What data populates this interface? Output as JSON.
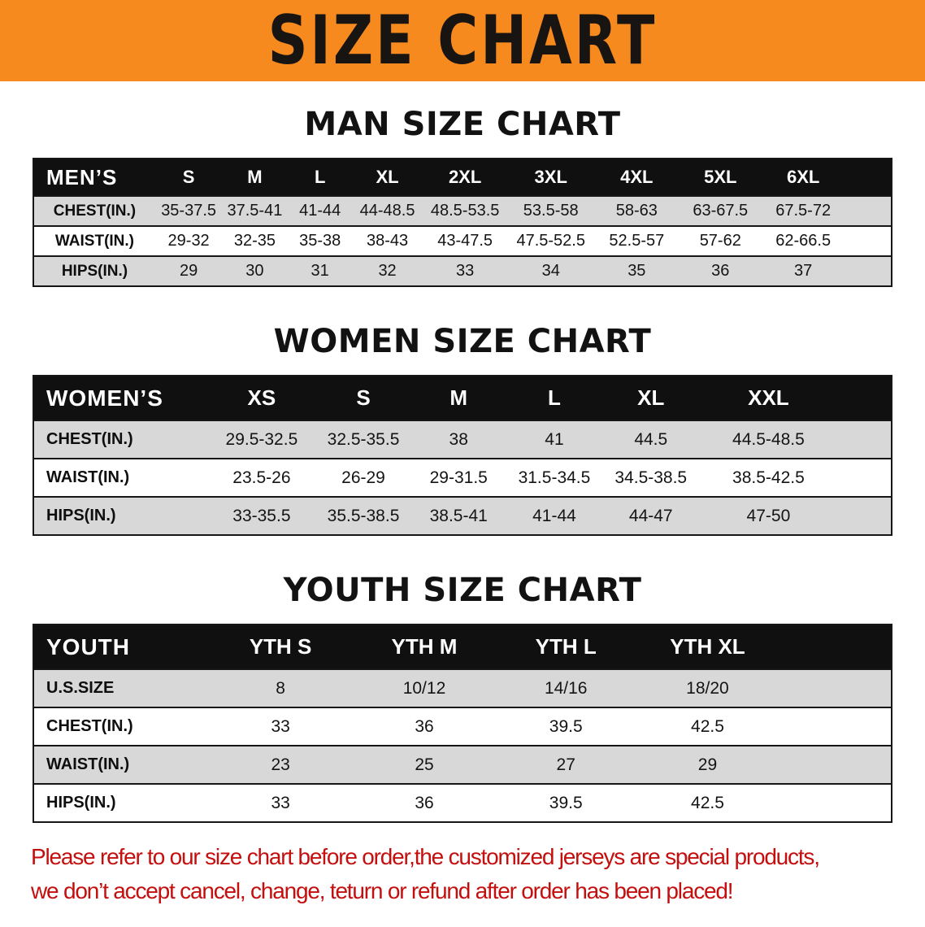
{
  "banner": {
    "title": "SIZE CHART"
  },
  "sections": [
    {
      "id": "men",
      "heading": "MAN SIZE CHART",
      "table": {
        "header": [
          "MEN’S",
          "S",
          "M",
          "L",
          "XL",
          "2XL",
          "3XL",
          "4XL",
          "5XL",
          "6XL"
        ],
        "rows": [
          [
            "CHEST(IN.)",
            "35-37.5",
            "37.5-41",
            "41-44",
            "44-48.5",
            "48.5-53.5",
            "53.5-58",
            "58-63",
            "63-67.5",
            "67.5-72"
          ],
          [
            "WAIST(IN.)",
            "29-32",
            "32-35",
            "35-38",
            "38-43",
            "43-47.5",
            "47.5-52.5",
            "52.5-57",
            "57-62",
            "62-66.5"
          ],
          [
            "HIPS(IN.)",
            "29",
            "30",
            "31",
            "32",
            "33",
            "34",
            "35",
            "36",
            "37"
          ]
        ]
      }
    },
    {
      "id": "women",
      "heading": "WOMEN SIZE CHART",
      "table": {
        "header": [
          "WOMEN’S",
          "XS",
          "S",
          "M",
          "L",
          "XL",
          "XXL"
        ],
        "rows": [
          [
            "CHEST(IN.)",
            "29.5-32.5",
            "32.5-35.5",
            "38",
            "41",
            "44.5",
            "44.5-48.5"
          ],
          [
            "WAIST(IN.)",
            "23.5-26",
            "26-29",
            "29-31.5",
            "31.5-34.5",
            "34.5-38.5",
            "38.5-42.5"
          ],
          [
            "HIPS(IN.)",
            "33-35.5",
            "35.5-38.5",
            "38.5-41",
            "41-44",
            "44-47",
            "47-50"
          ]
        ]
      }
    },
    {
      "id": "youth",
      "heading": "YOUTH SIZE CHART",
      "table": {
        "header": [
          "YOUTH",
          "YTH S",
          "YTH M",
          "YTH L",
          "YTH XL"
        ],
        "rows": [
          [
            "U.S.SIZE",
            "8",
            "10/12",
            "14/16",
            "18/20"
          ],
          [
            "CHEST(IN.)",
            "33",
            "36",
            "39.5",
            "42.5"
          ],
          [
            "WAIST(IN.)",
            "23",
            "25",
            "27",
            "29"
          ],
          [
            "HIPS(IN.)",
            "33",
            "36",
            "39.5",
            "42.5"
          ]
        ]
      }
    }
  ],
  "notice": {
    "lines": [
      "Please refer to our size chart before order,the customized jerseys are special products,",
      "we don’t accept cancel, change, teturn or refund after order has been placed!"
    ]
  },
  "colors": {
    "banner_bg": "#f68a1f",
    "table_header_bg": "#101010",
    "row_alt_bg": "#d8d8d8",
    "notice_text": "#c40f0f",
    "heading_text": "#121212"
  }
}
